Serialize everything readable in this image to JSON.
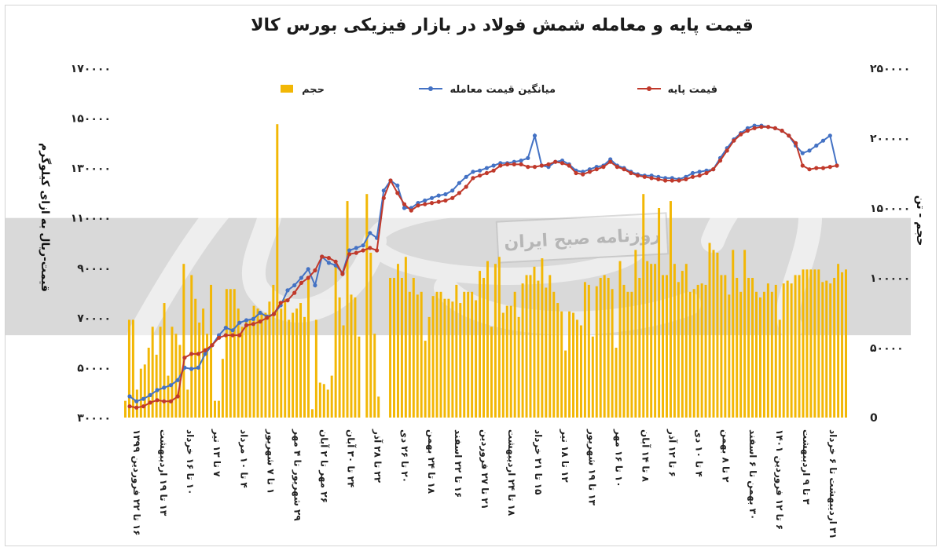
{
  "colors": {
    "bar": "#F2B705",
    "avg": "#4472C4",
    "base": "#C0392B",
    "band": "#d9d9d9"
  },
  "watermark": {
    "text": "روزنامه صبح ایران"
  },
  "chart_data": {
    "type": "bar+line",
    "title": "قیمت پایه و معامله شمش فولاد در بازار فیزیکی بورس کالا",
    "ylabel_left": "قیمت-ریال به ازای کیلوگرم",
    "ylabel_right": "حجم - تن",
    "ylim_left": [
      30000,
      170000
    ],
    "ylim_right": [
      0,
      250000
    ],
    "yticks_left": [
      "۳۰۰۰۰",
      "۵۰۰۰۰",
      "۷۰۰۰۰",
      "۹۰۰۰۰",
      "۱۱۰۰۰۰",
      "۱۳۰۰۰۰",
      "۱۵۰۰۰۰",
      "۱۷۰۰۰۰"
    ],
    "yticks_right": [
      "0",
      "۵۰۰۰۰",
      "۱۰۰۰۰۰",
      "۱۵۰۰۰۰",
      "۲۰۰۰۰۰",
      "۲۵۰۰۰۰"
    ],
    "legend": {
      "volume": "حجم",
      "avg": "میانگین قیمت معامله",
      "base": "قیمت پایه"
    },
    "xticks": [
      "۱۶ تا ۲۲ فروردین ۱۳۹۹",
      "۱۳ تا ۱۹ اردیبهشت",
      "۱۰ تا ۱۶ خرداد",
      "۷ تا ۱۳ تیر",
      "۴ تا ۱۰ مرداد",
      "۱ تا ۷ شهریور",
      "۲۹ شهریور تا ۴ مهر",
      "۲۶ مهر تا ۲ آبان",
      "۲۴ تا ۳۰ آبان",
      "۲۲ تا ۲۸ آذر",
      "۲۰ تا ۲۶ دی",
      "۱۸ تا ۲۴ بهمن",
      "۱۶ تا ۲۲ اسفند",
      "۲۱ تا ۲۷ فروردین",
      "۱۸ تا ۲۴ اردیبهشت",
      "۱۵ تا ۲۱ خرداد",
      "۱۲ تا ۱۸ تیر",
      "۱۳ تا ۱۹ شهریور",
      "۱۰ تا ۱۶ مهر",
      "۸ تا ۱۴ آبان",
      "۶ تا ۱۲ آذر",
      "۴ تا ۱۰ دی",
      "۲ تا ۸ بهمن",
      "۳۰ بهمن تا ۶ اسفند",
      "۶ تا ۱۲ فروردین ۱۴۰۱",
      "۳ تا ۹ اردیبهشت",
      "۳۱ اردیبهشت تا ۶ خرداد"
    ],
    "volume": [
      12000,
      70000,
      70000,
      20000,
      35000,
      38000,
      50000,
      65000,
      45000,
      65000,
      82000,
      30000,
      65000,
      60000,
      52000,
      110000,
      20000,
      102000,
      85000,
      68000,
      78000,
      60000,
      95000,
      12000,
      12000,
      42000,
      92000,
      92000,
      92000,
      78000,
      65000,
      70000,
      70000,
      80000,
      78000,
      75000,
      75000,
      83000,
      95000,
      210000,
      78000,
      85000,
      70000,
      75000,
      78000,
      82000,
      72000,
      100000,
      6000,
      70000,
      25000,
      24000,
      20000,
      30000,
      108000,
      86000,
      66000,
      155000,
      88000,
      86000,
      58000,
      0,
      160000,
      118000,
      60000,
      15000,
      0,
      0,
      100000,
      100000,
      110000,
      100000,
      115000,
      90000,
      100000,
      88000,
      90000,
      55000,
      72000,
      87000,
      90000,
      90000,
      85000,
      85000,
      83000,
      95000,
      82000,
      90000,
      90000,
      90000,
      84000,
      105000,
      100000,
      112000,
      65000,
      110000,
      115000,
      75000,
      80000,
      80000,
      90000,
      72000,
      96000,
      102000,
      102000,
      108000,
      98000,
      114000,
      93000,
      102000,
      90000,
      82000,
      76000,
      48000,
      76000,
      75000,
      70000,
      66000,
      97000,
      95000,
      58000,
      94000,
      100000,
      102000,
      100000,
      92000,
      50000,
      112000,
      95000,
      90000,
      90000,
      120000,
      100000,
      160000,
      112000,
      110000,
      110000,
      150000,
      102000,
      102000,
      155000,
      110000,
      97000,
      105000,
      110000,
      90000,
      92000,
      95000,
      96000,
      95000,
      125000,
      120000,
      118000,
      102000,
      102000,
      88000,
      120000,
      100000,
      90000,
      120000,
      100000,
      100000,
      90000,
      86000,
      90000,
      96000,
      90000,
      95000,
      70000,
      96000,
      98000,
      96000,
      102000,
      102000,
      106000,
      106000,
      106000,
      106000,
      106000,
      97000,
      98000,
      96000,
      100000,
      110000,
      104000,
      106000
    ],
    "base_price": [
      34500,
      34000,
      34500,
      36000,
      37000,
      36500,
      36500,
      38500,
      54000,
      55500,
      55500,
      57000,
      59000,
      62000,
      63000,
      63000,
      63000,
      67000,
      67500,
      68500,
      70000,
      71500,
      76000,
      77000,
      80000,
      84000,
      86000,
      89000,
      94500,
      94000,
      92500,
      87500,
      95500,
      96000,
      97000,
      98000,
      97000,
      118000,
      125000,
      120000,
      115500,
      113000,
      115000,
      115500,
      116000,
      116500,
      117000,
      118000,
      120000,
      122500,
      126000,
      127000,
      128000,
      129000,
      131000,
      131500,
      131500,
      131500,
      130500,
      130500,
      131000,
      131500,
      132500,
      132000,
      131000,
      128000,
      127500,
      128500,
      129500,
      130500,
      132500,
      130500,
      129500,
      128000,
      127000,
      126500,
      126000,
      125500,
      125000,
      125000,
      125000,
      125500,
      126500,
      127000,
      128000,
      129500,
      133000,
      137000,
      141000,
      143500,
      145000,
      146000,
      146500,
      146500,
      146000,
      145000,
      143000,
      140000,
      131000,
      129500,
      130000,
      130000,
      130500,
      131000
    ],
    "avg_price": [
      38500,
      36500,
      37500,
      39000,
      41000,
      42000,
      43000,
      45000,
      50000,
      49500,
      50000,
      55500,
      59000,
      63000,
      66000,
      65000,
      68000,
      69000,
      69500,
      72000,
      70500,
      71500,
      75000,
      81000,
      83000,
      86000,
      89500,
      83000,
      94500,
      92000,
      91000,
      88000,
      97000,
      98000,
      99000,
      104000,
      102000,
      121000,
      125000,
      123000,
      114000,
      114000,
      116000,
      117000,
      118000,
      119000,
      119500,
      121000,
      124000,
      126500,
      128500,
      129000,
      130000,
      131000,
      132000,
      132000,
      132500,
      133000,
      134000,
      143000,
      131000,
      130500,
      132500,
      133000,
      131500,
      129000,
      128500,
      129500,
      130500,
      131000,
      133500,
      131000,
      130000,
      128500,
      127500,
      127000,
      127000,
      126500,
      126000,
      126000,
      125500,
      126500,
      128000,
      128500,
      129000,
      129500,
      134000,
      138000,
      141500,
      144000,
      146000,
      147000,
      147000,
      146500,
      146000,
      145000,
      143000,
      139000,
      136000,
      137000,
      139000,
      141000,
      143000,
      131000
    ]
  }
}
